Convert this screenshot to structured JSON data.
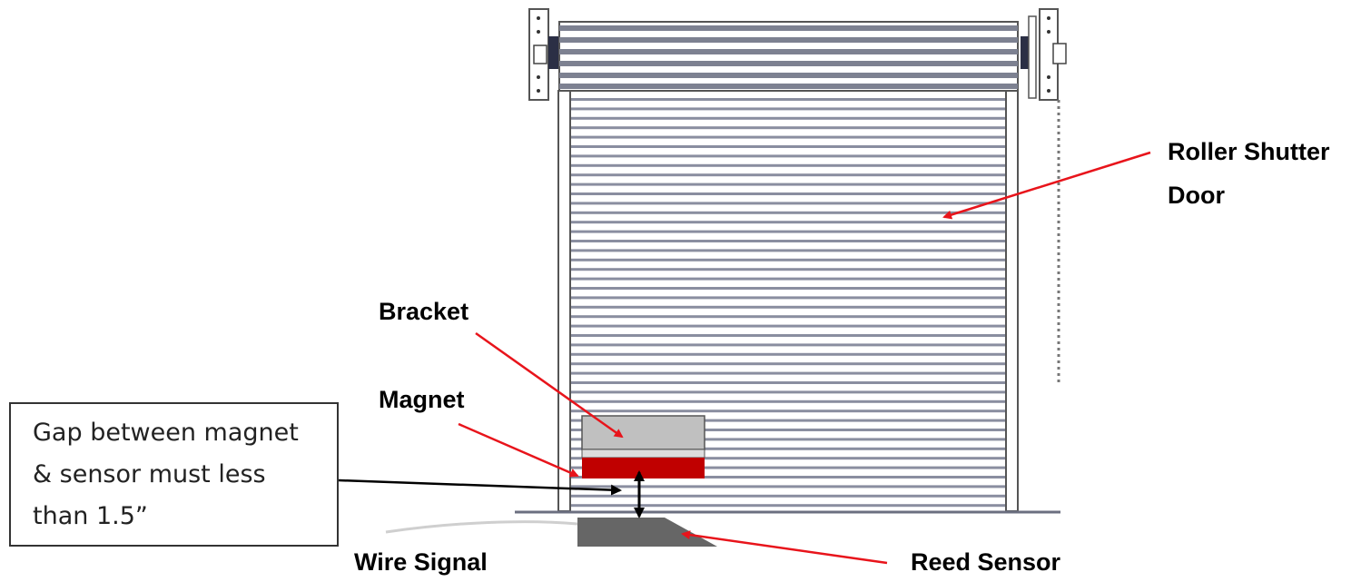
{
  "labels": {
    "roller_shutter_line1": "Roller Shutter",
    "roller_shutter_line2": "Door",
    "bracket": "Bracket",
    "magnet": "Magnet",
    "wire_signal": "Wire Signal",
    "reed_sensor": "Reed Sensor"
  },
  "note": {
    "line1": "Gap between magnet",
    "line2": "& sensor must less",
    "line3": "than 1.5”"
  },
  "colors": {
    "arrow_red": "#e8141b",
    "magnet_red": "#c00000",
    "bracket_gray": "#c0c0c0",
    "sensor_gray": "#666666",
    "door_outline": "#6b6f80"
  }
}
